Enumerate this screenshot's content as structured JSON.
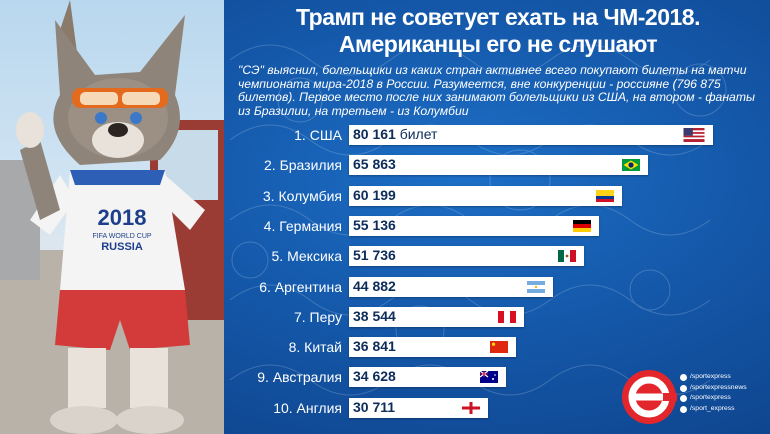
{
  "header": {
    "title_line1": "Трамп не советует ехать на ЧМ-2018.",
    "title_line2": "Американцы его не слушают",
    "description": "\"СЭ\" выяснил, болельщики из каких стран активнее всего покупают билеты на матчи чемпионата мира-2018 в России. Разумеется, вне конкуренции - россияне (796 875 билетов). Первое место после них занимают болельщики из США, на втором - фанаты из Бразилии, на третьем - из Колумбии"
  },
  "photo": {
    "shirt_year": "2018",
    "shirt_caption": "FIFA WORLD CUP",
    "shirt_country": "RUSSIA"
  },
  "chart_data": {
    "type": "bar",
    "orientation": "horizontal",
    "unit_label": "билет",
    "categories": [
      "1. США",
      "2. Бразилия",
      "3. Колумбия",
      "4. Германия",
      "5. Мексика",
      "6. Аргентина",
      "7. Перу",
      "8. Китай",
      "9. Австралия",
      "10. Англия"
    ],
    "value_labels": [
      "80 161",
      "65 863",
      "60 199",
      "55 136",
      "51 736",
      "44 882",
      "38 544",
      "36 841",
      "34 628",
      "30 711"
    ],
    "values": [
      80161,
      65863,
      60199,
      55136,
      51736,
      44882,
      38544,
      36841,
      34628,
      30711
    ],
    "flags": [
      "flag-usa-icon",
      "flag-brazil-icon",
      "flag-colombia-icon",
      "flag-germany-icon",
      "flag-mexico-icon",
      "flag-argentina-icon",
      "flag-peru-icon",
      "flag-china-icon",
      "flag-australia-icon",
      "flag-england-icon"
    ],
    "bar_color": "#ffffff",
    "label_color": "#0c2c5a",
    "background_color": "#1457a8"
  },
  "footer": {
    "logo_icon": "sport-express-logo-icon",
    "social": [
      "/sportexpress",
      "/sportexpressnews",
      "/sportexpress",
      "/sport_express"
    ],
    "social_icons": [
      "vk-icon",
      "facebook-icon",
      "twitter-icon",
      "instagram-icon"
    ],
    "accent_color": "#e3262c"
  }
}
